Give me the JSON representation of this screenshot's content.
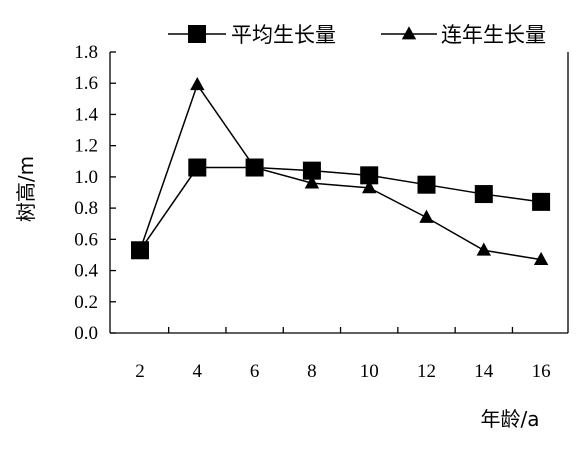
{
  "chart_data": {
    "type": "line",
    "title": "",
    "xlabel": "年龄/a",
    "ylabel": "树高/m",
    "x": [
      2,
      4,
      6,
      8,
      10,
      12,
      14,
      16
    ],
    "x_ticks": [
      "2",
      "4",
      "6",
      "8",
      "10",
      "12",
      "14",
      "16"
    ],
    "y_ticks": [
      "0.0",
      "0.2",
      "0.4",
      "0.6",
      "0.8",
      "1.0",
      "1.2",
      "1.4",
      "1.6",
      "1.8"
    ],
    "ylim": [
      0,
      1.8
    ],
    "grid": false,
    "legend_position": "top",
    "series": [
      {
        "name": "平均生长量",
        "marker": "square",
        "color": "#000000",
        "values": [
          0.53,
          1.06,
          1.06,
          1.04,
          1.01,
          0.95,
          0.89,
          0.84
        ]
      },
      {
        "name": "连年生长量",
        "marker": "triangle",
        "color": "#000000",
        "values": [
          0.53,
          1.59,
          1.06,
          0.96,
          0.93,
          0.74,
          0.53,
          0.47
        ]
      }
    ]
  }
}
